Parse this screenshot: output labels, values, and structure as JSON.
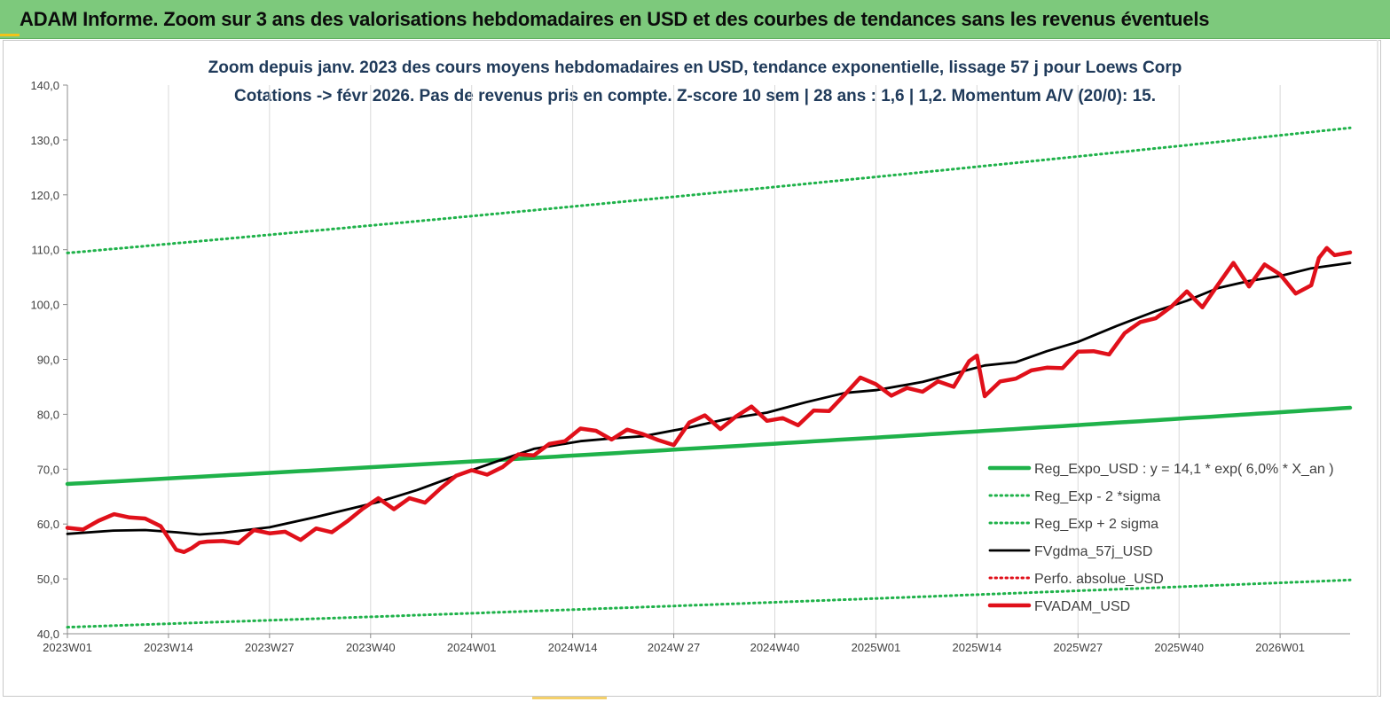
{
  "header": {
    "title": "ADAM Informe. Zoom sur 3 ans des valorisations hebdomadaires en USD et des courbes de tendances sans les revenus éventuels"
  },
  "chart_data": {
    "type": "line",
    "title": "Zoom depuis janv. 2023 des cours moyens hebdomadaires en USD, tendance exponentielle, lissage 57 j pour Loews Corp",
    "subtitle": "Cotations -> févr 2026. Pas de revenus pris en compte. Z-score 10 sem | 28 ans : 1,6 | 1,2. Momentum A/V (20/0): 15.",
    "xlabel": "",
    "ylabel": "",
    "ylim": [
      40,
      140
    ],
    "ytick_labels": [
      "40,0",
      "50,0",
      "60,0",
      "70,0",
      "80,0",
      "90,0",
      "100,0",
      "110,0",
      "120,0",
      "130,0",
      "140,0"
    ],
    "x_tick_labels": [
      "2023W01",
      "2023W14",
      "2023W27",
      "2023W40",
      "2024W01",
      "2024W14",
      "2024W 27",
      "2024W40",
      "2025W01",
      "2025W14",
      "2025W27",
      "2025W40",
      "2026W01"
    ],
    "n_weeks": 166,
    "grid": "vertical",
    "legend_position": "right",
    "series": [
      {
        "name": "Reg_Expo_USD : y = 14,1 * exp( 6,0% *  X_an )",
        "color": "#1fb24a",
        "style": "solid-thick",
        "x": [
          0,
          165
        ],
        "values": [
          67.3,
          81.2
        ],
        "curve": "exponential"
      },
      {
        "name": "Reg_Exp - 2 *sigma",
        "color": "#1fb24a",
        "style": "dotted",
        "x": [
          0,
          165
        ],
        "values": [
          41.2,
          49.8
        ],
        "curve": "exponential"
      },
      {
        "name": "Reg_Exp + 2 sigma",
        "color": "#1fb24a",
        "style": "dotted",
        "x": [
          0,
          165
        ],
        "values": [
          109.4,
          132.2
        ],
        "curve": "exponential"
      },
      {
        "name": "FVgdma_57j_USD",
        "color": "#000000",
        "style": "solid",
        "x": [
          0,
          6,
          10,
          14,
          17,
          20,
          26,
          32,
          40,
          45,
          50,
          56,
          60,
          66,
          70,
          74,
          80,
          85,
          90,
          95,
          100,
          104,
          110,
          114,
          118,
          122,
          126,
          130,
          135,
          140,
          144,
          148,
          152,
          156,
          160,
          165
        ],
        "values": [
          58.2,
          58.8,
          58.9,
          58.5,
          58.1,
          58.4,
          59.4,
          61.3,
          64.0,
          66.2,
          68.8,
          71.8,
          73.7,
          75.1,
          75.6,
          76.0,
          77.6,
          79.2,
          80.3,
          82.2,
          83.9,
          84.4,
          85.9,
          87.4,
          88.9,
          89.5,
          91.5,
          93.2,
          96.1,
          98.8,
          100.7,
          103.0,
          104.3,
          105.2,
          106.6,
          107.6
        ]
      },
      {
        "name": "Perfo. absolue_USD",
        "color": "#e0101a",
        "style": "dotted",
        "x": [],
        "values": []
      },
      {
        "name": "FVADAM_USD",
        "color": "#e0101a",
        "style": "solid-thick",
        "x": [
          0,
          2,
          4,
          6,
          8,
          10,
          12,
          14,
          15,
          16,
          17,
          18,
          20,
          22,
          24,
          26,
          28,
          30,
          32,
          34,
          36,
          38,
          40,
          42,
          44,
          46,
          48,
          50,
          52,
          54,
          56,
          58,
          60,
          62,
          64,
          66,
          68,
          70,
          72,
          74,
          76,
          78,
          80,
          82,
          84,
          86,
          88,
          90,
          92,
          94,
          96,
          98,
          100,
          102,
          104,
          106,
          108,
          110,
          112,
          114,
          116,
          117,
          118,
          120,
          122,
          124,
          126,
          128,
          130,
          132,
          134,
          136,
          138,
          140,
          142,
          144,
          146,
          148,
          150,
          152,
          154,
          156,
          158,
          160,
          161,
          162,
          163,
          165
        ],
        "values": [
          59.3,
          59.0,
          60.6,
          61.8,
          61.2,
          61.0,
          59.6,
          55.3,
          54.9,
          55.6,
          56.6,
          56.8,
          56.9,
          56.5,
          58.9,
          58.3,
          58.6,
          57.1,
          59.2,
          58.5,
          60.5,
          62.8,
          64.7,
          62.7,
          64.7,
          63.9,
          66.5,
          68.8,
          69.8,
          69.0,
          70.4,
          72.7,
          72.5,
          74.6,
          75.1,
          77.4,
          77.0,
          75.4,
          77.2,
          76.4,
          75.3,
          74.4,
          78.5,
          79.8,
          77.3,
          79.6,
          81.4,
          78.8,
          79.3,
          78.0,
          80.7,
          80.6,
          83.6,
          86.7,
          85.5,
          83.4,
          84.8,
          84.1,
          86.0,
          85.0,
          89.7,
          90.7,
          83.3,
          86.0,
          86.5,
          88.0,
          88.5,
          88.4,
          91.4,
          91.5,
          90.9,
          94.8,
          96.8,
          97.5,
          99.6,
          102.4,
          99.5,
          103.6,
          107.6,
          103.3,
          107.3,
          105.5,
          102.0,
          103.5,
          108.5,
          110.3,
          109.0,
          109.5
        ]
      }
    ]
  }
}
